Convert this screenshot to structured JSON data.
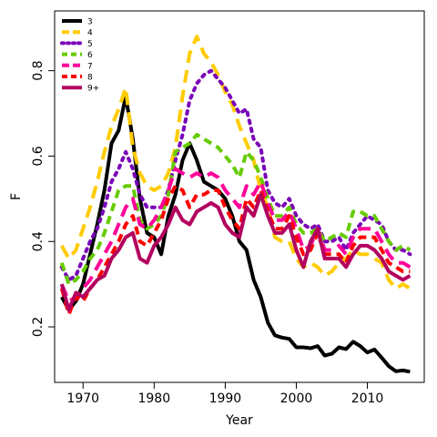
{
  "chart_data": {
    "type": "line",
    "title": "",
    "xlabel": "Year",
    "ylabel": "F",
    "xlim": [
      1966,
      2018
    ],
    "ylim": [
      0.07,
      0.94
    ],
    "x_ticks": [
      1970,
      1980,
      1990,
      2000,
      2010
    ],
    "y_ticks": [
      0.2,
      0.4,
      0.6,
      0.8
    ],
    "x_tick_labels": [
      "1970",
      "1980",
      "1990",
      "2000",
      "2010"
    ],
    "y_tick_labels": [
      "0.2",
      "0.4",
      "0.6",
      "0.8"
    ],
    "grid": false,
    "legend_position": "top-left",
    "x": [
      1967,
      1968,
      1969,
      1970,
      1971,
      1972,
      1973,
      1974,
      1975,
      1976,
      1977,
      1978,
      1979,
      1980,
      1981,
      1982,
      1983,
      1984,
      1985,
      1986,
      1987,
      1988,
      1989,
      1990,
      1991,
      1992,
      1993,
      1994,
      1995,
      1996,
      1997,
      1998,
      1999,
      2000,
      2001,
      2002,
      2003,
      2004,
      2005,
      2006,
      2007,
      2008,
      2009,
      2010,
      2011,
      2012,
      2013,
      2014,
      2015,
      2016
    ],
    "series": [
      {
        "name": "3",
        "color": "#000000",
        "dash": "solid",
        "values": [
          0.27,
          0.24,
          0.26,
          0.3,
          0.37,
          0.44,
          0.52,
          0.63,
          0.66,
          0.74,
          0.64,
          0.5,
          0.42,
          0.41,
          0.37,
          0.46,
          0.51,
          0.59,
          0.63,
          0.59,
          0.54,
          0.53,
          0.52,
          0.5,
          0.46,
          0.4,
          0.38,
          0.31,
          0.27,
          0.21,
          0.18,
          0.175,
          0.172,
          0.152,
          0.152,
          0.15,
          0.155,
          0.133,
          0.137,
          0.152,
          0.148,
          0.165,
          0.155,
          0.14,
          0.147,
          0.128,
          0.108,
          0.096,
          0.098,
          0.095
        ]
      },
      {
        "name": "4",
        "color": "#ffcc00",
        "dash": "long",
        "values": [
          0.39,
          0.36,
          0.38,
          0.43,
          0.48,
          0.54,
          0.61,
          0.67,
          0.71,
          0.76,
          0.62,
          0.56,
          0.53,
          0.52,
          0.53,
          0.56,
          0.62,
          0.74,
          0.84,
          0.88,
          0.84,
          0.82,
          0.79,
          0.75,
          0.72,
          0.67,
          0.63,
          0.59,
          0.52,
          0.48,
          0.41,
          0.4,
          0.4,
          0.36,
          0.34,
          0.35,
          0.34,
          0.32,
          0.33,
          0.35,
          0.36,
          0.38,
          0.37,
          0.37,
          0.36,
          0.35,
          0.31,
          0.29,
          0.3,
          0.29
        ]
      },
      {
        "name": "5",
        "color": "#7a00b8",
        "dash": "dot",
        "values": [
          0.34,
          0.31,
          0.32,
          0.36,
          0.4,
          0.43,
          0.48,
          0.54,
          0.57,
          0.61,
          0.57,
          0.51,
          0.48,
          0.48,
          0.48,
          0.52,
          0.59,
          0.65,
          0.73,
          0.77,
          0.79,
          0.8,
          0.78,
          0.76,
          0.73,
          0.7,
          0.71,
          0.64,
          0.62,
          0.52,
          0.49,
          0.48,
          0.5,
          0.46,
          0.44,
          0.43,
          0.44,
          0.4,
          0.4,
          0.41,
          0.38,
          0.42,
          0.44,
          0.46,
          0.45,
          0.44,
          0.4,
          0.38,
          0.38,
          0.37
        ]
      },
      {
        "name": "6",
        "color": "#66cc00",
        "dash": "medium",
        "values": [
          0.35,
          0.3,
          0.31,
          0.33,
          0.36,
          0.38,
          0.42,
          0.47,
          0.52,
          0.53,
          0.53,
          0.45,
          0.43,
          0.44,
          0.46,
          0.51,
          0.61,
          0.62,
          0.63,
          0.65,
          0.64,
          0.63,
          0.62,
          0.6,
          0.58,
          0.55,
          0.61,
          0.59,
          0.55,
          0.5,
          0.46,
          0.46,
          0.48,
          0.44,
          0.42,
          0.42,
          0.43,
          0.4,
          0.41,
          0.42,
          0.41,
          0.47,
          0.47,
          0.46,
          0.46,
          0.43,
          0.4,
          0.38,
          0.39,
          0.38
        ]
      },
      {
        "name": "7",
        "color": "#ff0099",
        "dash": "long",
        "values": [
          0.3,
          0.26,
          0.27,
          0.29,
          0.31,
          0.34,
          0.37,
          0.4,
          0.44,
          0.48,
          0.5,
          0.44,
          0.43,
          0.45,
          0.48,
          0.52,
          0.57,
          0.56,
          0.55,
          0.56,
          0.55,
          0.56,
          0.55,
          0.52,
          0.5,
          0.48,
          0.53,
          0.51,
          0.54,
          0.49,
          0.45,
          0.45,
          0.47,
          0.43,
          0.38,
          0.39,
          0.43,
          0.38,
          0.38,
          0.39,
          0.37,
          0.41,
          0.43,
          0.43,
          0.43,
          0.4,
          0.37,
          0.35,
          0.35,
          0.34
        ]
      },
      {
        "name": "8",
        "color": "#ff0000",
        "dash": "medium",
        "values": [
          0.29,
          0.23,
          0.27,
          0.26,
          0.29,
          0.31,
          0.34,
          0.37,
          0.4,
          0.44,
          0.46,
          0.4,
          0.39,
          0.42,
          0.45,
          0.5,
          0.53,
          0.52,
          0.48,
          0.51,
          0.51,
          0.52,
          0.52,
          0.48,
          0.45,
          0.43,
          0.5,
          0.48,
          0.52,
          0.47,
          0.43,
          0.43,
          0.46,
          0.41,
          0.37,
          0.38,
          0.42,
          0.37,
          0.37,
          0.37,
          0.35,
          0.39,
          0.41,
          0.41,
          0.41,
          0.38,
          0.35,
          0.34,
          0.33,
          0.33
        ]
      },
      {
        "name": "9+",
        "color": "#b3005f",
        "dash": "solid",
        "values": [
          0.3,
          0.24,
          0.28,
          0.27,
          0.29,
          0.31,
          0.32,
          0.36,
          0.38,
          0.41,
          0.42,
          0.36,
          0.35,
          0.39,
          0.41,
          0.44,
          0.48,
          0.45,
          0.44,
          0.47,
          0.48,
          0.49,
          0.48,
          0.44,
          0.42,
          0.41,
          0.48,
          0.46,
          0.51,
          0.46,
          0.42,
          0.42,
          0.44,
          0.38,
          0.34,
          0.4,
          0.43,
          0.36,
          0.36,
          0.36,
          0.34,
          0.37,
          0.39,
          0.39,
          0.38,
          0.36,
          0.33,
          0.32,
          0.31,
          0.32
        ]
      }
    ]
  }
}
